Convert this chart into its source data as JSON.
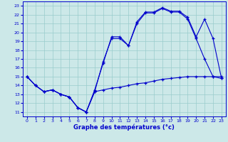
{
  "xlabel": "Graphe des températures (°c)",
  "bg_color": "#cce8e8",
  "line_color": "#0000cc",
  "grid_color": "#99cccc",
  "xlim": [
    -0.5,
    23.5
  ],
  "ylim": [
    10.5,
    23.5
  ],
  "xticks": [
    0,
    1,
    2,
    3,
    4,
    5,
    6,
    7,
    8,
    9,
    10,
    11,
    12,
    13,
    14,
    15,
    16,
    17,
    18,
    19,
    20,
    21,
    22,
    23
  ],
  "yticks": [
    11,
    12,
    13,
    14,
    15,
    16,
    17,
    18,
    19,
    20,
    21,
    22,
    23
  ],
  "line1_x": [
    0,
    1,
    2,
    3,
    4,
    5,
    6,
    7,
    8,
    9,
    10,
    11,
    12,
    13,
    14,
    15,
    16,
    17,
    18,
    19,
    20,
    21,
    22,
    23
  ],
  "line1_y": [
    15,
    14,
    13.3,
    13.5,
    13.0,
    12.7,
    11.5,
    11.0,
    13.3,
    16.7,
    19.3,
    19.3,
    18.5,
    21.0,
    22.2,
    22.2,
    22.7,
    22.3,
    22.3,
    21.5,
    19.3,
    17.0,
    15.0,
    14.8
  ],
  "line2_x": [
    0,
    1,
    2,
    3,
    4,
    5,
    6,
    7,
    8,
    9,
    10,
    11,
    12,
    13,
    14,
    15,
    16,
    17,
    18,
    19,
    20,
    21,
    22,
    23
  ],
  "line2_y": [
    15,
    14,
    13.3,
    13.5,
    13.0,
    12.7,
    11.5,
    11.0,
    13.5,
    16.5,
    19.5,
    19.5,
    18.5,
    21.2,
    22.3,
    22.3,
    22.8,
    22.4,
    22.4,
    21.7,
    19.5,
    21.5,
    19.3,
    14.8
  ],
  "line3_x": [
    0,
    1,
    2,
    3,
    4,
    5,
    6,
    7,
    8,
    9,
    10,
    11,
    12,
    13,
    14,
    15,
    16,
    17,
    18,
    19,
    20,
    21,
    22,
    23
  ],
  "line3_y": [
    15,
    14,
    13.3,
    13.5,
    13.0,
    12.7,
    11.5,
    11.0,
    13.3,
    13.5,
    13.7,
    13.8,
    14.0,
    14.2,
    14.3,
    14.5,
    14.7,
    14.8,
    14.9,
    15.0,
    15.0,
    15.0,
    15.0,
    15.0
  ]
}
